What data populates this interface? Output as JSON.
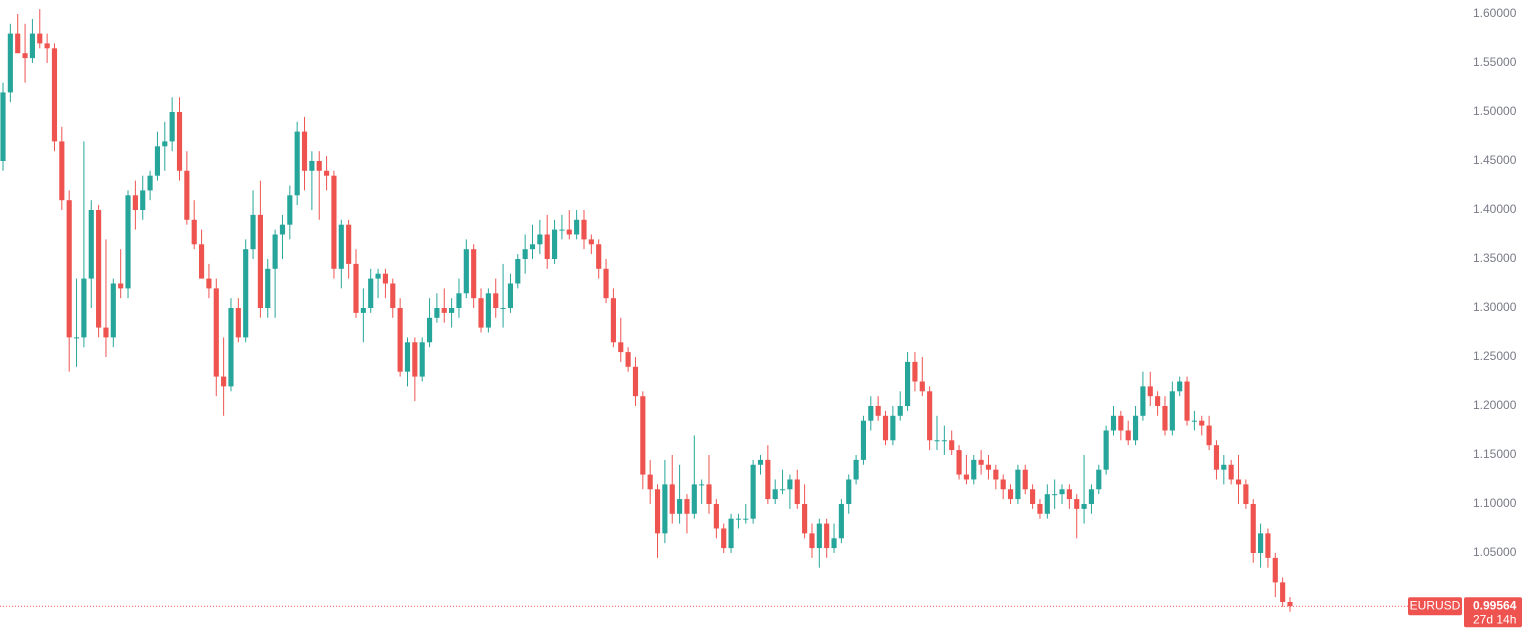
{
  "chart_data": {
    "type": "candlestick",
    "up_color": "#26a69a",
    "down_color": "#ef5350",
    "ylim": [
      0.9663,
      1.61429
    ],
    "yticks": [
      {
        "value": 1.05,
        "label": "1.05000"
      },
      {
        "value": 1.1,
        "label": "1.10000"
      },
      {
        "value": 1.15,
        "label": "1.15000"
      },
      {
        "value": 1.2,
        "label": "1.20000"
      },
      {
        "value": 1.25,
        "label": "1.25000"
      },
      {
        "value": 1.3,
        "label": "1.30000"
      },
      {
        "value": 1.35,
        "label": "1.35000"
      },
      {
        "value": 1.4,
        "label": "1.40000"
      },
      {
        "value": 1.45,
        "label": "1.45000"
      },
      {
        "value": 1.5,
        "label": "1.50000"
      },
      {
        "value": 1.55,
        "label": "1.55000"
      },
      {
        "value": 1.6,
        "label": "1.60000"
      }
    ],
    "symbol": "EURUSD",
    "last_price": 0.99564,
    "countdown": "27d 14h",
    "ohlc": [
      [
        1.45,
        1.53,
        1.44,
        1.52
      ],
      [
        1.52,
        1.59,
        1.51,
        1.58
      ],
      [
        1.58,
        1.6,
        1.56,
        1.56
      ],
      [
        1.56,
        1.59,
        1.53,
        1.555
      ],
      [
        1.555,
        1.595,
        1.55,
        1.58
      ],
      [
        1.58,
        1.605,
        1.565,
        1.57
      ],
      [
        1.57,
        1.58,
        1.55,
        1.565
      ],
      [
        1.565,
        1.57,
        1.46,
        1.47
      ],
      [
        1.47,
        1.485,
        1.4,
        1.41
      ],
      [
        1.41,
        1.42,
        1.235,
        1.27
      ],
      [
        1.27,
        1.33,
        1.24,
        1.27
      ],
      [
        1.27,
        1.47,
        1.26,
        1.33
      ],
      [
        1.33,
        1.41,
        1.3,
        1.4
      ],
      [
        1.4,
        1.405,
        1.27,
        1.28
      ],
      [
        1.28,
        1.37,
        1.25,
        1.27
      ],
      [
        1.27,
        1.33,
        1.26,
        1.325
      ],
      [
        1.325,
        1.36,
        1.31,
        1.32
      ],
      [
        1.32,
        1.42,
        1.31,
        1.415
      ],
      [
        1.415,
        1.43,
        1.38,
        1.4
      ],
      [
        1.4,
        1.435,
        1.39,
        1.42
      ],
      [
        1.42,
        1.44,
        1.41,
        1.435
      ],
      [
        1.435,
        1.48,
        1.43,
        1.465
      ],
      [
        1.465,
        1.49,
        1.44,
        1.47
      ],
      [
        1.47,
        1.515,
        1.46,
        1.5
      ],
      [
        1.5,
        1.515,
        1.43,
        1.44
      ],
      [
        1.44,
        1.46,
        1.385,
        1.39
      ],
      [
        1.39,
        1.41,
        1.36,
        1.365
      ],
      [
        1.365,
        1.38,
        1.33,
        1.33
      ],
      [
        1.33,
        1.345,
        1.31,
        1.32
      ],
      [
        1.32,
        1.33,
        1.21,
        1.23
      ],
      [
        1.23,
        1.27,
        1.19,
        1.22
      ],
      [
        1.22,
        1.31,
        1.215,
        1.3
      ],
      [
        1.3,
        1.31,
        1.265,
        1.27
      ],
      [
        1.27,
        1.37,
        1.265,
        1.36
      ],
      [
        1.36,
        1.42,
        1.35,
        1.395
      ],
      [
        1.395,
        1.43,
        1.29,
        1.3
      ],
      [
        1.3,
        1.35,
        1.29,
        1.34
      ],
      [
        1.34,
        1.38,
        1.29,
        1.375
      ],
      [
        1.375,
        1.395,
        1.35,
        1.385
      ],
      [
        1.385,
        1.425,
        1.37,
        1.415
      ],
      [
        1.415,
        1.49,
        1.405,
        1.48
      ],
      [
        1.48,
        1.495,
        1.42,
        1.44
      ],
      [
        1.44,
        1.46,
        1.4,
        1.45
      ],
      [
        1.45,
        1.46,
        1.39,
        1.44
      ],
      [
        1.44,
        1.455,
        1.42,
        1.435
      ],
      [
        1.435,
        1.44,
        1.33,
        1.34
      ],
      [
        1.34,
        1.39,
        1.32,
        1.385
      ],
      [
        1.385,
        1.39,
        1.33,
        1.345
      ],
      [
        1.345,
        1.36,
        1.29,
        1.295
      ],
      [
        1.295,
        1.32,
        1.265,
        1.3
      ],
      [
        1.3,
        1.34,
        1.295,
        1.33
      ],
      [
        1.33,
        1.34,
        1.31,
        1.335
      ],
      [
        1.335,
        1.34,
        1.31,
        1.325
      ],
      [
        1.325,
        1.33,
        1.29,
        1.3
      ],
      [
        1.3,
        1.31,
        1.23,
        1.235
      ],
      [
        1.235,
        1.27,
        1.22,
        1.265
      ],
      [
        1.265,
        1.27,
        1.205,
        1.23
      ],
      [
        1.23,
        1.27,
        1.225,
        1.265
      ],
      [
        1.265,
        1.31,
        1.26,
        1.29
      ],
      [
        1.29,
        1.315,
        1.285,
        1.3
      ],
      [
        1.3,
        1.32,
        1.285,
        1.295
      ],
      [
        1.295,
        1.31,
        1.28,
        1.3
      ],
      [
        1.3,
        1.33,
        1.29,
        1.315
      ],
      [
        1.315,
        1.37,
        1.31,
        1.36
      ],
      [
        1.36,
        1.365,
        1.3,
        1.31
      ],
      [
        1.31,
        1.32,
        1.275,
        1.28
      ],
      [
        1.28,
        1.32,
        1.275,
        1.315
      ],
      [
        1.315,
        1.33,
        1.29,
        1.3
      ],
      [
        1.3,
        1.345,
        1.28,
        1.3
      ],
      [
        1.3,
        1.335,
        1.295,
        1.325
      ],
      [
        1.325,
        1.355,
        1.32,
        1.35
      ],
      [
        1.35,
        1.375,
        1.335,
        1.36
      ],
      [
        1.36,
        1.385,
        1.35,
        1.365
      ],
      [
        1.365,
        1.39,
        1.355,
        1.375
      ],
      [
        1.375,
        1.395,
        1.34,
        1.35
      ],
      [
        1.35,
        1.39,
        1.345,
        1.38
      ],
      [
        1.38,
        1.395,
        1.37,
        1.38
      ],
      [
        1.38,
        1.4,
        1.37,
        1.375
      ],
      [
        1.375,
        1.4,
        1.37,
        1.39
      ],
      [
        1.39,
        1.4,
        1.36,
        1.37
      ],
      [
        1.37,
        1.375,
        1.355,
        1.365
      ],
      [
        1.365,
        1.37,
        1.33,
        1.34
      ],
      [
        1.34,
        1.35,
        1.305,
        1.31
      ],
      [
        1.31,
        1.32,
        1.26,
        1.265
      ],
      [
        1.265,
        1.29,
        1.245,
        1.255
      ],
      [
        1.255,
        1.26,
        1.235,
        1.24
      ],
      [
        1.24,
        1.25,
        1.2,
        1.21
      ],
      [
        1.21,
        1.215,
        1.115,
        1.13
      ],
      [
        1.13,
        1.145,
        1.1,
        1.115
      ],
      [
        1.115,
        1.12,
        1.045,
        1.07
      ],
      [
        1.07,
        1.145,
        1.06,
        1.12
      ],
      [
        1.12,
        1.15,
        1.08,
        1.09
      ],
      [
        1.09,
        1.14,
        1.08,
        1.105
      ],
      [
        1.105,
        1.11,
        1.07,
        1.09
      ],
      [
        1.09,
        1.17,
        1.085,
        1.12
      ],
      [
        1.12,
        1.125,
        1.1,
        1.12
      ],
      [
        1.12,
        1.15,
        1.09,
        1.1
      ],
      [
        1.1,
        1.105,
        1.065,
        1.075
      ],
      [
        1.075,
        1.08,
        1.05,
        1.055
      ],
      [
        1.055,
        1.09,
        1.05,
        1.085
      ],
      [
        1.085,
        1.09,
        1.075,
        1.085
      ],
      [
        1.085,
        1.1,
        1.08,
        1.085
      ],
      [
        1.085,
        1.145,
        1.08,
        1.14
      ],
      [
        1.14,
        1.15,
        1.13,
        1.145
      ],
      [
        1.145,
        1.16,
        1.1,
        1.105
      ],
      [
        1.105,
        1.125,
        1.1,
        1.115
      ],
      [
        1.115,
        1.135,
        1.11,
        1.115
      ],
      [
        1.115,
        1.13,
        1.095,
        1.125
      ],
      [
        1.125,
        1.135,
        1.095,
        1.1
      ],
      [
        1.1,
        1.12,
        1.065,
        1.07
      ],
      [
        1.07,
        1.08,
        1.045,
        1.055
      ],
      [
        1.055,
        1.085,
        1.035,
        1.08
      ],
      [
        1.08,
        1.085,
        1.045,
        1.055
      ],
      [
        1.055,
        1.08,
        1.05,
        1.065
      ],
      [
        1.065,
        1.105,
        1.06,
        1.1
      ],
      [
        1.1,
        1.13,
        1.09,
        1.125
      ],
      [
        1.125,
        1.15,
        1.12,
        1.145
      ],
      [
        1.145,
        1.19,
        1.14,
        1.185
      ],
      [
        1.185,
        1.21,
        1.175,
        1.2
      ],
      [
        1.2,
        1.21,
        1.185,
        1.19
      ],
      [
        1.19,
        1.195,
        1.16,
        1.165
      ],
      [
        1.165,
        1.2,
        1.16,
        1.19
      ],
      [
        1.19,
        1.215,
        1.185,
        1.2
      ],
      [
        1.2,
        1.255,
        1.195,
        1.245
      ],
      [
        1.245,
        1.255,
        1.215,
        1.225
      ],
      [
        1.225,
        1.25,
        1.21,
        1.215
      ],
      [
        1.215,
        1.22,
        1.155,
        1.165
      ],
      [
        1.165,
        1.19,
        1.155,
        1.165
      ],
      [
        1.165,
        1.18,
        1.15,
        1.165
      ],
      [
        1.165,
        1.175,
        1.15,
        1.155
      ],
      [
        1.155,
        1.16,
        1.125,
        1.13
      ],
      [
        1.13,
        1.15,
        1.12,
        1.125
      ],
      [
        1.125,
        1.15,
        1.12,
        1.145
      ],
      [
        1.145,
        1.155,
        1.13,
        1.14
      ],
      [
        1.14,
        1.15,
        1.125,
        1.135
      ],
      [
        1.135,
        1.14,
        1.115,
        1.125
      ],
      [
        1.125,
        1.13,
        1.105,
        1.115
      ],
      [
        1.115,
        1.12,
        1.1,
        1.105
      ],
      [
        1.105,
        1.14,
        1.1,
        1.135
      ],
      [
        1.135,
        1.14,
        1.11,
        1.115
      ],
      [
        1.115,
        1.12,
        1.095,
        1.1
      ],
      [
        1.1,
        1.105,
        1.085,
        1.09
      ],
      [
        1.09,
        1.12,
        1.085,
        1.11
      ],
      [
        1.11,
        1.125,
        1.095,
        1.11
      ],
      [
        1.11,
        1.12,
        1.1,
        1.115
      ],
      [
        1.115,
        1.12,
        1.095,
        1.105
      ],
      [
        1.105,
        1.11,
        1.065,
        1.095
      ],
      [
        1.095,
        1.15,
        1.08,
        1.1
      ],
      [
        1.1,
        1.12,
        1.09,
        1.115
      ],
      [
        1.115,
        1.14,
        1.11,
        1.135
      ],
      [
        1.135,
        1.18,
        1.13,
        1.175
      ],
      [
        1.175,
        1.2,
        1.17,
        1.19
      ],
      [
        1.19,
        1.195,
        1.165,
        1.175
      ],
      [
        1.175,
        1.185,
        1.16,
        1.165
      ],
      [
        1.165,
        1.2,
        1.16,
        1.19
      ],
      [
        1.19,
        1.235,
        1.185,
        1.22
      ],
      [
        1.22,
        1.235,
        1.2,
        1.21
      ],
      [
        1.21,
        1.215,
        1.19,
        1.2
      ],
      [
        1.2,
        1.21,
        1.17,
        1.175
      ],
      [
        1.175,
        1.225,
        1.17,
        1.215
      ],
      [
        1.215,
        1.23,
        1.21,
        1.225
      ],
      [
        1.225,
        1.23,
        1.18,
        1.185
      ],
      [
        1.185,
        1.195,
        1.175,
        1.185
      ],
      [
        1.185,
        1.19,
        1.17,
        1.18
      ],
      [
        1.18,
        1.19,
        1.155,
        1.16
      ],
      [
        1.16,
        1.165,
        1.125,
        1.135
      ],
      [
        1.135,
        1.15,
        1.12,
        1.14
      ],
      [
        1.14,
        1.145,
        1.12,
        1.125
      ],
      [
        1.125,
        1.15,
        1.1,
        1.12
      ],
      [
        1.12,
        1.125,
        1.095,
        1.1
      ],
      [
        1.1,
        1.105,
        1.04,
        1.05
      ],
      [
        1.05,
        1.08,
        1.035,
        1.07
      ],
      [
        1.07,
        1.075,
        1.035,
        1.045
      ],
      [
        1.045,
        1.05,
        1.005,
        1.02
      ],
      [
        1.02,
        1.025,
        0.995,
        1.0
      ],
      [
        1.0,
        1.005,
        0.99,
        0.99564
      ]
    ]
  }
}
